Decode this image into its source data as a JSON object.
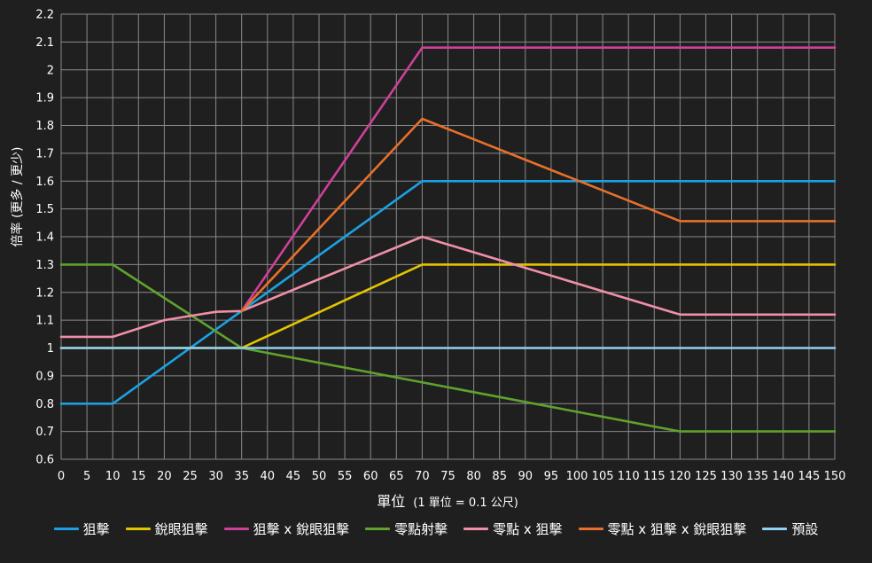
{
  "chart_data": {
    "type": "line",
    "xlabel": "單位",
    "xlabel_note": "(1 單位 = 0.1 公尺)",
    "ylabel": "倍率 (更多 / 更少)",
    "xlim": [
      0,
      150
    ],
    "ylim": [
      0.6,
      2.2
    ],
    "x_ticks": [
      0,
      5,
      10,
      15,
      20,
      25,
      30,
      35,
      40,
      45,
      50,
      55,
      60,
      65,
      70,
      75,
      80,
      85,
      90,
      95,
      100,
      105,
      110,
      115,
      120,
      125,
      130,
      135,
      140,
      145,
      150
    ],
    "y_ticks": [
      "0.6",
      "0.7",
      "0.8",
      "0.9",
      "1",
      "1.1",
      "1.2",
      "1.3",
      "1.4",
      "1.5",
      "1.6",
      "1.7",
      "1.8",
      "1.9",
      "2",
      "2.1",
      "2.2"
    ],
    "grid": true,
    "legend_position": "bottom",
    "series": [
      {
        "name": "狙擊",
        "color": "#1ba1e2",
        "points": [
          [
            0,
            0.8
          ],
          [
            10,
            0.8
          ],
          [
            70,
            1.6
          ],
          [
            150,
            1.6
          ]
        ]
      },
      {
        "name": "銳眼狙擊",
        "color": "#e3c400",
        "points": [
          [
            0,
            1.0
          ],
          [
            35,
            1.0
          ],
          [
            70,
            1.3
          ],
          [
            150,
            1.3
          ]
        ]
      },
      {
        "name": "狙擊 x 銳眼狙擊",
        "color": "#d0409a",
        "points": [
          [
            35,
            1.133
          ],
          [
            70,
            2.08
          ],
          [
            150,
            2.08
          ]
        ]
      },
      {
        "name": "零點射擊",
        "color": "#5fa22c",
        "points": [
          [
            0,
            1.3
          ],
          [
            10,
            1.3
          ],
          [
            35,
            1.0
          ],
          [
            120,
            0.7
          ],
          [
            150,
            0.7
          ]
        ]
      },
      {
        "name": "零點 x 狙擊",
        "color": "#f08fa8",
        "points": [
          [
            0,
            1.04
          ],
          [
            10,
            1.04
          ],
          [
            15,
            1.07
          ],
          [
            20,
            1.1
          ],
          [
            25,
            1.115
          ],
          [
            30,
            1.13
          ],
          [
            35,
            1.133
          ],
          [
            70,
            1.4
          ],
          [
            120,
            1.12
          ],
          [
            150,
            1.12
          ]
        ]
      },
      {
        "name": "零點 x 狙擊 x 銳眼狙擊",
        "color": "#e8702a",
        "points": [
          [
            35,
            1.133
          ],
          [
            70,
            1.824
          ],
          [
            120,
            1.456
          ],
          [
            150,
            1.456
          ]
        ]
      },
      {
        "name": "預設",
        "color": "#8fd0f4",
        "points": [
          [
            0,
            1.0
          ],
          [
            150,
            1.0
          ]
        ]
      }
    ]
  }
}
